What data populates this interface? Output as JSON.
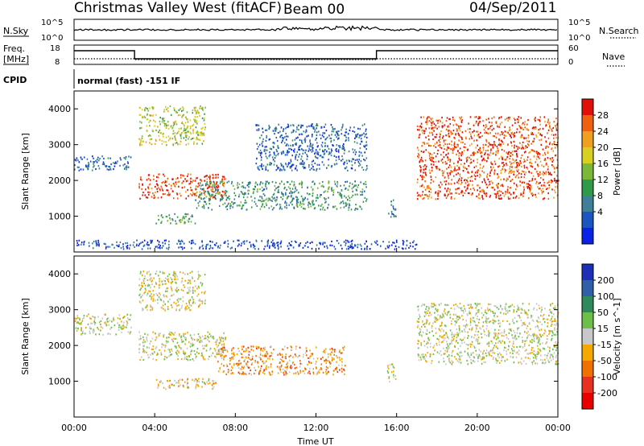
{
  "header": {
    "site": "Christmas Valley West (fitACF)",
    "beam": "Beam 00",
    "date": "04/Sep/2011"
  },
  "summary": {
    "nsky_label": "N.Sky",
    "nsearch_label": "N.Search",
    "freq_label_line1": "Freq.",
    "freq_label_line2": "[MHz]",
    "nave_label": "Nave",
    "cpid_label": "CPID",
    "cpid_value": "normal (fast) -151 IF",
    "nsky_ticks": [
      "10^5",
      "10^0"
    ],
    "nsearch_ticks": [
      "10^5",
      "10^0"
    ],
    "freq_ticks": [
      "18",
      "8"
    ],
    "nave_ticks": [
      "60",
      "0"
    ]
  },
  "colors": {
    "power_scale": [
      "#0a22e6",
      "#1a55c2",
      "#3f7f9a",
      "#2e9a4a",
      "#7ab83a",
      "#d8d020",
      "#f0a020",
      "#f06010",
      "#e01008"
    ],
    "velocity_scale": [
      "#1d2fb8",
      "#2f5fa8",
      "#2e8a5a",
      "#6cc04a",
      "#c8c8c8",
      "#f5a800",
      "#f07000",
      "#e83020",
      "#e80000"
    ]
  },
  "chart_data": {
    "type": "heatmap",
    "xlabel": "Time UT",
    "x_ticks": [
      "00:00",
      "04:00",
      "08:00",
      "12:00",
      "16:00",
      "20:00",
      "00:00"
    ],
    "xlim_hours": [
      0,
      24
    ],
    "ylabel": "Slant Range [km]",
    "ylim_km": [
      0,
      4500
    ],
    "y_ticks": [
      1000,
      2000,
      3000,
      4000
    ],
    "panels": [
      {
        "name": "power",
        "colorbar_label": "Power [dB]",
        "colorbar_ticks": [
          4,
          8,
          12,
          16,
          20,
          24,
          28
        ],
        "bands": [
          {
            "t0": 0.0,
            "t1": 2.8,
            "r0": 2300,
            "r1": 2700,
            "value": 8
          },
          {
            "t0": 3.2,
            "t1": 6.5,
            "r0": 3000,
            "r1": 4100,
            "value": 18
          },
          {
            "t0": 3.2,
            "t1": 7.5,
            "r0": 1500,
            "r1": 2200,
            "value": 26
          },
          {
            "t0": 4.0,
            "t1": 6.0,
            "r0": 800,
            "r1": 1100,
            "value": 14
          },
          {
            "t0": 6.0,
            "t1": 14.5,
            "r0": 1200,
            "r1": 2000,
            "value": 12
          },
          {
            "t0": 9.0,
            "t1": 14.5,
            "r0": 2300,
            "r1": 3600,
            "value": 8
          },
          {
            "t0": 15.5,
            "t1": 16.0,
            "r0": 1000,
            "r1": 1500,
            "value": 10
          },
          {
            "t0": 17.0,
            "t1": 24.0,
            "r0": 1500,
            "r1": 3800,
            "value": 26
          },
          {
            "t0": 0.0,
            "t1": 17.0,
            "r0": 100,
            "r1": 350,
            "value": 6
          }
        ]
      },
      {
        "name": "velocity",
        "colorbar_label": "Velocity [m s^-1]",
        "colorbar_ticks": [
          200,
          100,
          50,
          15,
          -15,
          -50,
          -100,
          -200
        ],
        "bands": [
          {
            "t0": 0.0,
            "t1": 2.8,
            "r0": 2300,
            "r1": 2900,
            "value": 0
          },
          {
            "t0": 3.2,
            "t1": 6.5,
            "r0": 3000,
            "r1": 4100,
            "value": 0
          },
          {
            "t0": 3.2,
            "t1": 7.5,
            "r0": 1600,
            "r1": 2400,
            "value": 0
          },
          {
            "t0": 4.0,
            "t1": 7.0,
            "r0": 800,
            "r1": 1100,
            "value": -20
          },
          {
            "t0": 7.0,
            "t1": 13.5,
            "r0": 1200,
            "r1": 2000,
            "value": -70
          },
          {
            "t0": 17.0,
            "t1": 24.0,
            "r0": 1500,
            "r1": 3200,
            "value": 0
          },
          {
            "t0": 15.5,
            "t1": 16.0,
            "r0": 1000,
            "r1": 1500,
            "value": 0
          }
        ]
      }
    ]
  }
}
